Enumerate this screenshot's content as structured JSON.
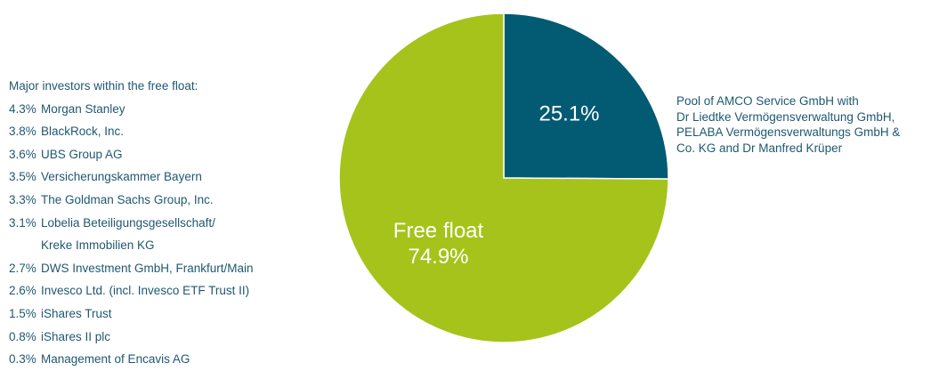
{
  "colors": {
    "free_float": "#a5c31a",
    "pool": "#035a73",
    "text": "#1f5870",
    "slice_label": "#ffffff"
  },
  "investors": {
    "title": "Major investors within the free float:",
    "items": [
      {
        "pct": "4.3%",
        "name": [
          "Morgan Stanley"
        ]
      },
      {
        "pct": "3.8%",
        "name": [
          "BlackRock, Inc."
        ]
      },
      {
        "pct": "3.6%",
        "name": [
          "UBS Group AG"
        ]
      },
      {
        "pct": "3.5%",
        "name": [
          "Versicherungskammer Bayern"
        ]
      },
      {
        "pct": "3.3%",
        "name": [
          "The Goldman Sachs Group, Inc."
        ]
      },
      {
        "pct": "3.1%",
        "name": [
          "Lobelia Beteiligungsgesellschaft/",
          "Kreke Immobilien KG"
        ]
      },
      {
        "pct": "2.7%",
        "name": [
          "DWS Investment GmbH, Frankfurt/Main"
        ]
      },
      {
        "pct": "2.6%",
        "name": [
          "Invesco Ltd. (incl. Invesco ETF Trust II)"
        ]
      },
      {
        "pct": "1.5%",
        "name": [
          "iShares Trust"
        ]
      },
      {
        "pct": "0.8%",
        "name": [
          "iShares II plc"
        ]
      },
      {
        "pct": "0.3%",
        "name": [
          "Management of Encavis AG"
        ]
      }
    ]
  },
  "chart_data": {
    "type": "pie",
    "slices": [
      {
        "key": "pool",
        "value": 25.1,
        "label": [
          "25.1%"
        ],
        "color": "#035a73"
      },
      {
        "key": "free_float",
        "value": 74.9,
        "label": [
          "Free float",
          "74.9%"
        ],
        "color": "#a5c31a"
      }
    ],
    "annotations": {
      "pool": [
        "Pool of AMCO Service GmbH with",
        "Dr Liedtke Vermögensverwaltung GmbH,",
        "PELABA Vermögensverwaltungs GmbH &",
        "Co. KG and Dr Manfred Krüper"
      ]
    }
  }
}
